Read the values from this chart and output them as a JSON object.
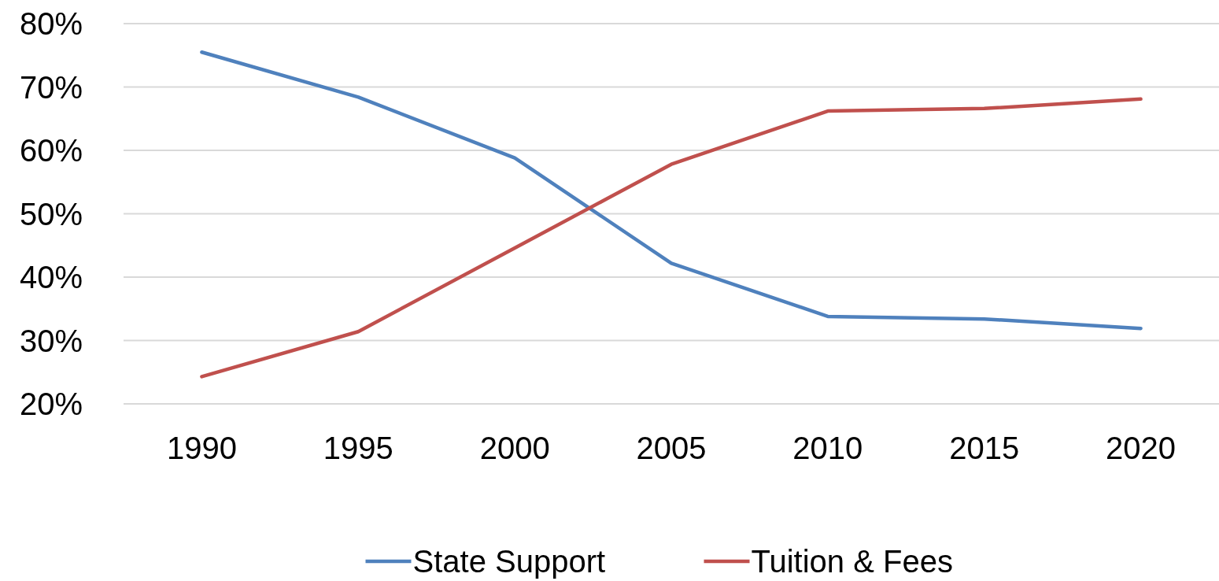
{
  "chart_data": {
    "type": "line",
    "categories": [
      "1990",
      "1995",
      "2000",
      "2005",
      "2010",
      "2015",
      "2020"
    ],
    "series": [
      {
        "name": "State Support",
        "color": "#4f81bd",
        "values": [
          75.5,
          68.4,
          58.8,
          42.2,
          33.8,
          33.4,
          31.9
        ]
      },
      {
        "name": "Tuition & Fees",
        "color": "#c0504d",
        "values": [
          24.3,
          31.4,
          44.6,
          57.8,
          66.2,
          66.6,
          68.1
        ]
      }
    ],
    "ylim": [
      20,
      80
    ],
    "yticks": [
      {
        "value": 20,
        "label": "20%"
      },
      {
        "value": 30,
        "label": "30%"
      },
      {
        "value": 40,
        "label": "40%"
      },
      {
        "value": 50,
        "label": "50%"
      },
      {
        "value": 60,
        "label": "60%"
      },
      {
        "value": 70,
        "label": "70%"
      },
      {
        "value": 80,
        "label": "80%"
      }
    ],
    "grid": "y",
    "legend": "bottom",
    "marker": "none",
    "line_style": "solid"
  }
}
